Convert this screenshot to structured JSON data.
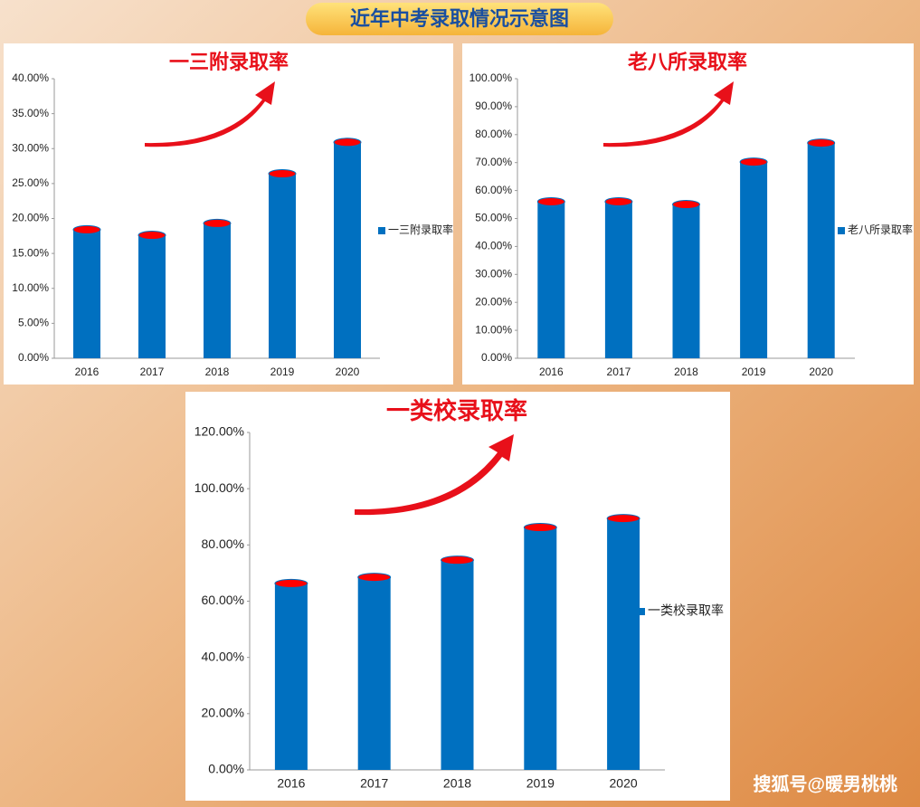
{
  "header": {
    "title": "近年中考录取情况示意图"
  },
  "footer": {
    "watermark": "搜狐号@暖男桃桃"
  },
  "chart_data": [
    {
      "type": "bar",
      "title": "一三附录取率",
      "categories": [
        "2016",
        "2017",
        "2018",
        "2019",
        "2020"
      ],
      "series": [
        {
          "name": "一三附录取率",
          "color": "#0070c0",
          "values": [
            18.4,
            17.6,
            19.3,
            26.4,
            30.9
          ]
        }
      ],
      "ylim": [
        0,
        40
      ],
      "yticks": [
        {
          "value": 0,
          "label": "0.00%"
        },
        {
          "value": 5,
          "label": "5.00%"
        },
        {
          "value": 10,
          "label": "10.00%"
        },
        {
          "value": 15,
          "label": "15.00%"
        },
        {
          "value": 20,
          "label": "20.00%"
        },
        {
          "value": 25,
          "label": "25.00%"
        },
        {
          "value": 30,
          "label": "30.00%"
        },
        {
          "value": 35,
          "label": "35.00%"
        },
        {
          "value": 40,
          "label": "40.00%"
        }
      ],
      "legend": "right"
    },
    {
      "type": "bar",
      "title": "老八所录取率",
      "categories": [
        "2016",
        "2017",
        "2018",
        "2019",
        "2020"
      ],
      "series": [
        {
          "name": "老八所录取率",
          "color": "#0070c0",
          "values": [
            56,
            56,
            55,
            70.2,
            77
          ]
        }
      ],
      "ylim": [
        0,
        100
      ],
      "yticks": [
        {
          "value": 0,
          "label": "0.00%"
        },
        {
          "value": 10,
          "label": "10.00%"
        },
        {
          "value": 20,
          "label": "20.00%"
        },
        {
          "value": 30,
          "label": "30.00%"
        },
        {
          "value": 40,
          "label": "40.00%"
        },
        {
          "value": 50,
          "label": "50.00%"
        },
        {
          "value": 60,
          "label": "60.00%"
        },
        {
          "value": 70,
          "label": "70.00%"
        },
        {
          "value": 80,
          "label": "80.00%"
        },
        {
          "value": 90,
          "label": "90.00%"
        },
        {
          "value": 100,
          "label": "100.00%"
        }
      ],
      "legend": "right"
    },
    {
      "type": "bar",
      "title": "一类校录取率",
      "categories": [
        "2016",
        "2017",
        "2018",
        "2019",
        "2020"
      ],
      "series": [
        {
          "name": "一类校录取率",
          "color": "#0070c0",
          "values": [
            66.3,
            68.5,
            74.6,
            86.2,
            89.4
          ]
        }
      ],
      "ylim": [
        0,
        120
      ],
      "yticks": [
        {
          "value": 0,
          "label": "0.00%"
        },
        {
          "value": 20,
          "label": "20.00%"
        },
        {
          "value": 40,
          "label": "40.00%"
        },
        {
          "value": 60,
          "label": "60.00%"
        },
        {
          "value": 80,
          "label": "80.00%"
        },
        {
          "value": 100,
          "label": "100.00%"
        },
        {
          "value": 120,
          "label": "120.00%"
        }
      ],
      "legend": "right"
    }
  ]
}
